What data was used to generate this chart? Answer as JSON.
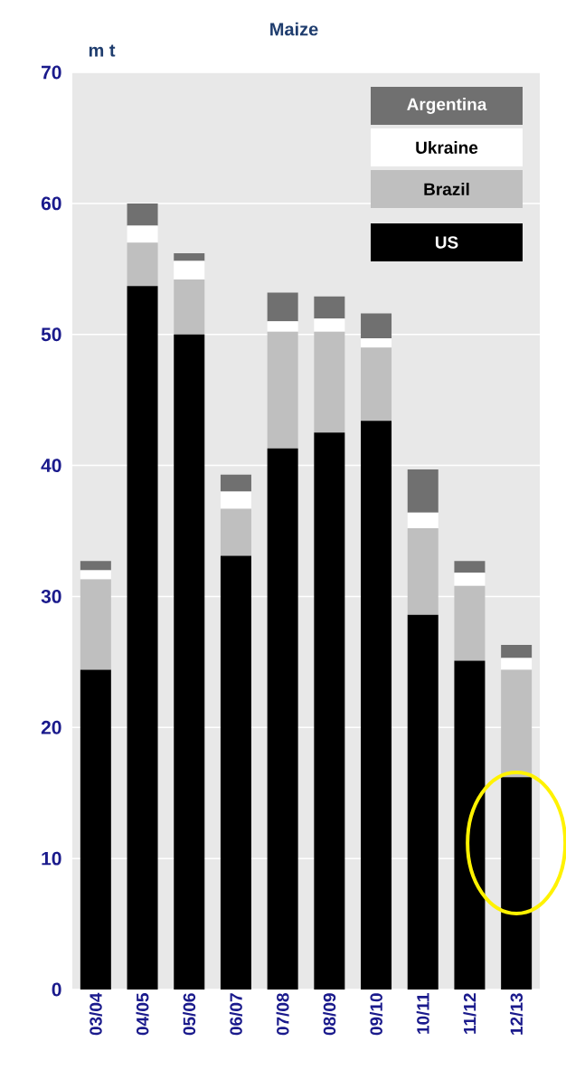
{
  "chart_data": {
    "type": "bar",
    "title": "Maize",
    "ylabel": "m t",
    "categories": [
      "03/04",
      "04/05",
      "05/06",
      "06/07",
      "07/08",
      "08/09",
      "09/10",
      "10/11",
      "11/12",
      "12/13"
    ],
    "series": [
      {
        "name": "US",
        "color": "#000000",
        "values": [
          24.4,
          53.7,
          50.0,
          33.1,
          41.3,
          42.5,
          43.4,
          28.6,
          25.1,
          16.2
        ]
      },
      {
        "name": "Brazil",
        "color": "#bfbfbf",
        "values": [
          6.9,
          3.3,
          4.2,
          3.6,
          8.9,
          7.7,
          5.6,
          6.6,
          5.7,
          8.2
        ]
      },
      {
        "name": "Ukraine",
        "color": "#ffffff",
        "values": [
          0.7,
          1.3,
          1.4,
          1.3,
          0.8,
          1.0,
          0.7,
          1.2,
          1.0,
          0.9
        ]
      },
      {
        "name": "Argentina",
        "color": "#707070",
        "values": [
          0.7,
          1.7,
          0.6,
          1.3,
          2.2,
          1.7,
          1.9,
          3.3,
          0.9,
          1.0
        ]
      }
    ],
    "stacked": true,
    "ylim": [
      0,
      70
    ],
    "yticks": [
      0,
      10,
      20,
      30,
      40,
      50,
      60,
      70
    ],
    "grid": "y",
    "legend": "top right"
  }
}
